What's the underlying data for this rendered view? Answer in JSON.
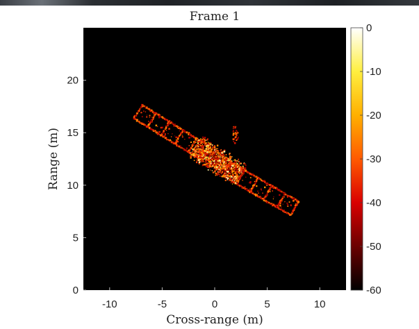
{
  "chart_data": {
    "type": "heatmap",
    "title": "Frame 1",
    "xlabel": "Cross-range (m)",
    "ylabel": "Range (m)",
    "xlim": [
      -12.5,
      12.5
    ],
    "ylim": [
      0,
      25
    ],
    "x_ticks": [
      "-10",
      "-5",
      "0",
      "5",
      "10"
    ],
    "x_tick_values": [
      -10,
      -5,
      0,
      5,
      10
    ],
    "y_ticks": [
      "0",
      "5",
      "10",
      "15",
      "20"
    ],
    "y_tick_values": [
      0,
      5,
      10,
      15,
      20
    ],
    "colorbar": {
      "range": [
        -60,
        0
      ],
      "ticks": [
        "0",
        "-10",
        "-20",
        "-30",
        "-40",
        "-50",
        "-60"
      ],
      "tick_values": [
        0,
        -10,
        -20,
        -30,
        -40,
        -50,
        -60
      ],
      "colormap": "hot",
      "colors": [
        "#000000",
        "#6b0000",
        "#d90000",
        "#ff5a00",
        "#ffb000",
        "#ffef40",
        "#ffffff"
      ]
    },
    "background_color": "#000000",
    "grid": false,
    "target": {
      "solar_panels": [
        {
          "from": [
            -7.3,
            17.0
          ],
          "to": [
            -0.8,
            13.0
          ],
          "segments": 5
        },
        {
          "from": [
            1.2,
            11.5
          ],
          "to": [
            7.6,
            7.8
          ],
          "segments": 5
        }
      ],
      "body": {
        "center": [
          0.3,
          12.3
        ],
        "half_length": 2.6,
        "half_width": 1.3,
        "angle_deg": -32
      }
    }
  }
}
